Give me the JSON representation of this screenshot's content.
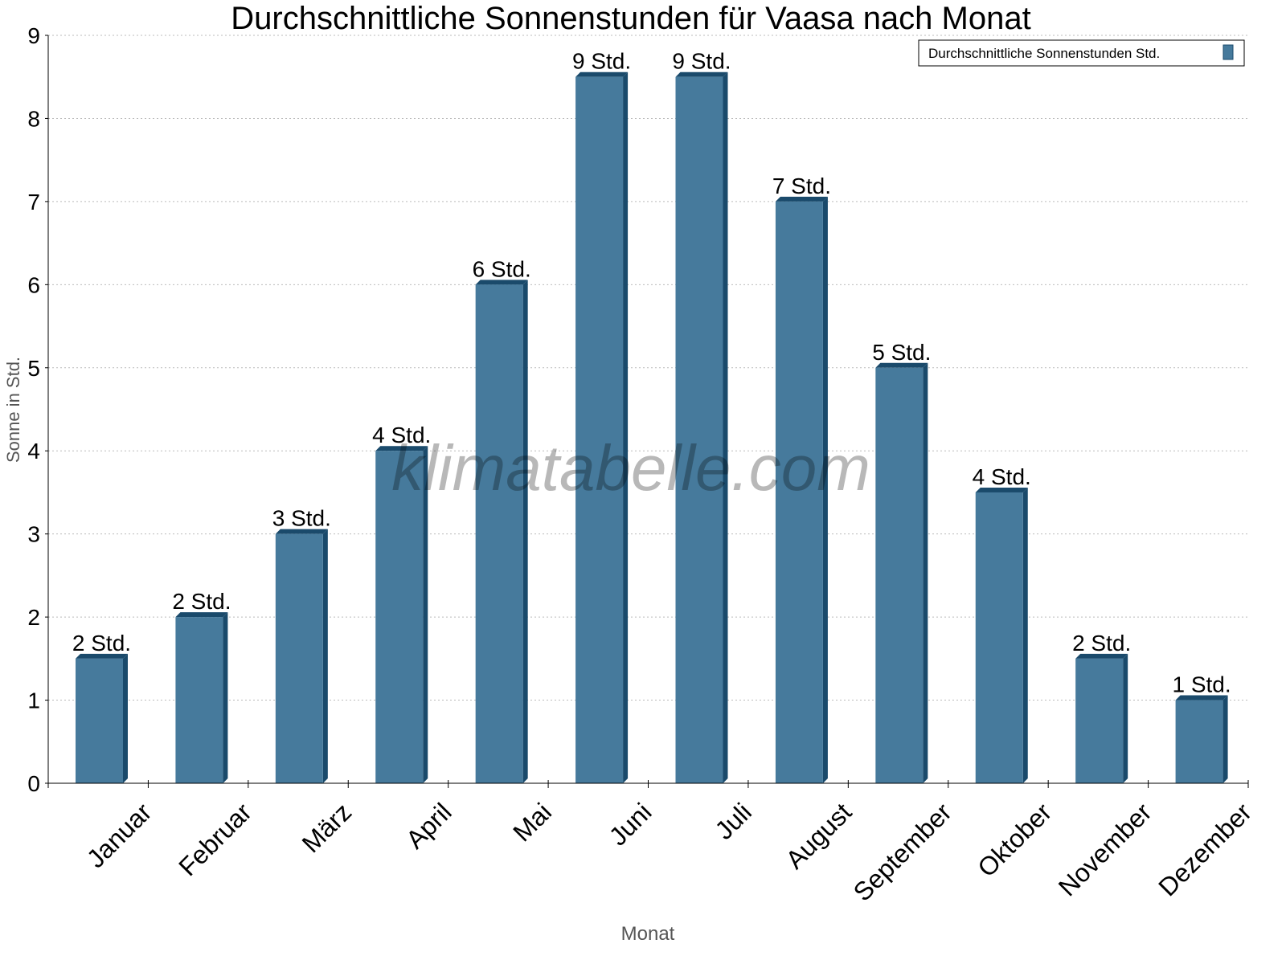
{
  "chart_data": {
    "type": "bar",
    "title": "Durchschnittliche Sonnenstunden für Vaasa nach Monat",
    "xlabel": "Monat",
    "ylabel": "Sonne in Std.",
    "ylim": [
      0,
      9
    ],
    "yticks": [
      "0",
      "1",
      "2",
      "3",
      "4",
      "5",
      "6",
      "7",
      "8",
      "9"
    ],
    "grid": true,
    "legend_position": "top-right",
    "watermark": "klimatabelle.com",
    "categories": [
      "Januar",
      "Februar",
      "März",
      "April",
      "Mai",
      "Juni",
      "Juli",
      "August",
      "September",
      "Oktober",
      "November",
      "Dezember"
    ],
    "series": [
      {
        "name": "Durchschnittliche Sonnenstunden Std.",
        "color": "#467a9c",
        "side_color": "#1a4a6b",
        "values": [
          1.5,
          2,
          3,
          4,
          6,
          8.5,
          8.5,
          7,
          5,
          3.5,
          1.5,
          1
        ],
        "data_labels": [
          "2 Std.",
          "2 Std.",
          "3 Std.",
          "4 Std.",
          "6 Std.",
          "9 Std.",
          "9 Std.",
          "7 Std.",
          "5 Std.",
          "4 Std.",
          "2 Std.",
          "1 Std."
        ]
      }
    ]
  }
}
